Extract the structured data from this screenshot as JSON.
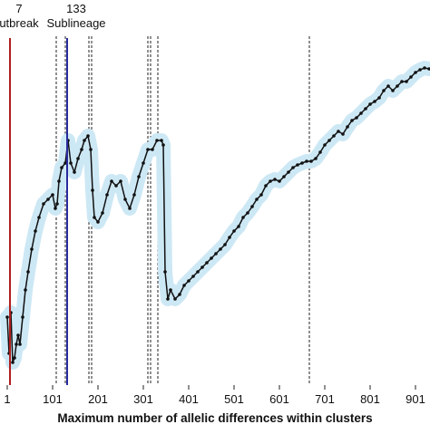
{
  "chart_data": {
    "type": "line",
    "x_label": "Maximum number of allelic differences within clusters",
    "xlim": [
      -15,
      933
    ],
    "ylim": [
      0,
      425
    ],
    "xticks": [
      1,
      101,
      201,
      301,
      401,
      501,
      601,
      701,
      801,
      901
    ],
    "band_color": "#cde8f5",
    "series": [
      {
        "color": "#111111",
        "x": [
          1,
          5,
          9,
          13,
          17,
          21,
          25,
          29,
          35,
          41,
          47,
          55,
          63,
          71,
          81,
          91,
          101,
          107,
          111,
          115,
          121,
          129,
          135,
          141,
          149,
          157,
          165,
          171,
          179,
          185,
          189,
          193,
          201,
          211,
          221,
          231,
          241,
          251,
          261,
          271,
          281,
          291,
          301,
          311,
          321,
          331,
          341,
          345,
          349,
          355,
          361,
          371,
          381,
          391,
          401,
          411,
          421,
          431,
          441,
          451,
          461,
          471,
          481,
          491,
          501,
          511,
          521,
          531,
          541,
          551,
          561,
          571,
          581,
          591,
          601,
          611,
          621,
          631,
          641,
          651,
          661,
          671,
          681,
          691,
          701,
          711,
          721,
          731,
          741,
          751,
          761,
          771,
          781,
          791,
          801,
          811,
          821,
          831,
          841,
          851,
          861,
          871,
          881,
          891,
          901,
          911,
          921,
          931
        ],
        "values": [
          75,
          35,
          80,
          25,
          30,
          45,
          55,
          45,
          75,
          105,
          125,
          150,
          170,
          185,
          200,
          205,
          210,
          195,
          200,
          225,
          240,
          245,
          270,
          245,
          235,
          250,
          260,
          270,
          275,
          260,
          215,
          185,
          180,
          190,
          210,
          225,
          220,
          225,
          205,
          195,
          210,
          230,
          245,
          260,
          260,
          270,
          270,
          265,
          125,
          95,
          105,
          95,
          100,
          110,
          115,
          120,
          125,
          130,
          135,
          140,
          145,
          150,
          155,
          163,
          170,
          175,
          185,
          190,
          197,
          205,
          210,
          220,
          225,
          227,
          225,
          230,
          235,
          240,
          243,
          245,
          247,
          247,
          250,
          257,
          265,
          270,
          275,
          280,
          277,
          285,
          292,
          295,
          300,
          305,
          310,
          313,
          317,
          325,
          330,
          325,
          330,
          335,
          335,
          340,
          345,
          348,
          350,
          349
        ]
      }
    ],
    "reference_lines": [
      {
        "x": 7,
        "color": "#b01e1e",
        "label_top": "7",
        "label_bottom": "utbreak"
      },
      {
        "x": 133,
        "color": "#2a2a9e",
        "label_top": "133",
        "label_bottom": "Sublineage"
      }
    ],
    "dashed_lines": [
      109,
      129,
      181,
      187,
      311,
      317,
      333,
      667
    ]
  }
}
